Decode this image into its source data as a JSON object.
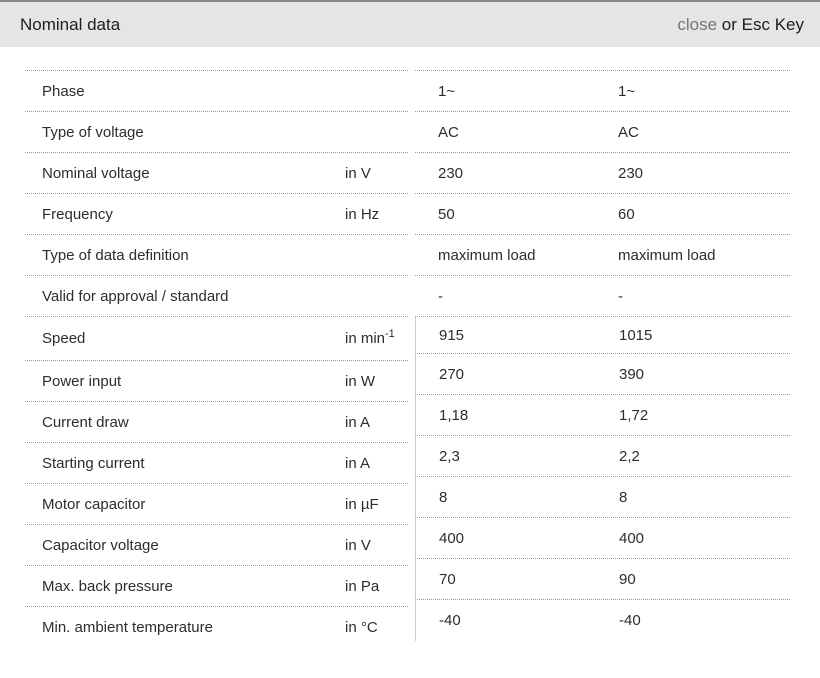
{
  "header": {
    "title": "Nominal data",
    "close_label": "close",
    "close_suffix": " or Esc Key"
  },
  "table": {
    "rows": [
      {
        "label": "Phase",
        "unit": "",
        "v1": "1~",
        "v2": "1~"
      },
      {
        "label": "Type of voltage",
        "unit": "",
        "v1": "AC",
        "v2": "AC"
      },
      {
        "label": "Nominal voltage",
        "unit": "in V",
        "v1": "230",
        "v2": "230"
      },
      {
        "label": "Frequency",
        "unit": "in Hz",
        "v1": "50",
        "v2": "60"
      },
      {
        "label": "Type of data definition",
        "unit": "",
        "v1": "maximum load",
        "v2": "maximum load"
      },
      {
        "label": "Valid for approval / standard",
        "unit": "",
        "v1": "-",
        "v2": "-"
      },
      {
        "label": "Speed",
        "unit": "in min",
        "unit_sup": "-1",
        "v1": "915",
        "v2": "1015"
      },
      {
        "label": "Power input",
        "unit": "in W",
        "v1": "270",
        "v2": "390"
      },
      {
        "label": "Current draw",
        "unit": "in A",
        "v1": "1,18",
        "v2": "1,72"
      },
      {
        "label": "Starting current",
        "unit": "in A",
        "v1": "2,3",
        "v2": "2,2"
      },
      {
        "label": "Motor capacitor",
        "unit": "in µF",
        "v1": "8",
        "v2": "8"
      },
      {
        "label": "Capacitor voltage",
        "unit": "in V",
        "v1": "400",
        "v2": "400"
      },
      {
        "label": "Max. back pressure",
        "unit": "in Pa",
        "v1": "70",
        "v2": "90"
      },
      {
        "label": "Min. ambient temperature",
        "unit": "in °C",
        "v1": "-40",
        "v2": "-40"
      }
    ]
  },
  "colors": {
    "header_bg": "#e5e5e5",
    "header_top_border": "#8a8a8a",
    "close_link": "#757575",
    "text": "#2d2d2d",
    "dotted_divider": "#999999",
    "values_left_border": "#cccccc"
  }
}
